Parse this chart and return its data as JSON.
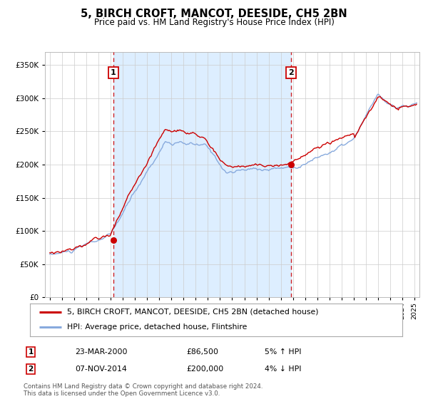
{
  "title": "5, BIRCH CROFT, MANCOT, DEESIDE, CH5 2BN",
  "subtitle": "Price paid vs. HM Land Registry's House Price Index (HPI)",
  "legend_line1": "5, BIRCH CROFT, MANCOT, DEESIDE, CH5 2BN (detached house)",
  "legend_line2": "HPI: Average price, detached house, Flintshire",
  "transaction1_date": "23-MAR-2000",
  "transaction1_price": "£86,500",
  "transaction1_hpi": "5% ↑ HPI",
  "transaction2_date": "07-NOV-2014",
  "transaction2_price": "£200,000",
  "transaction2_hpi": "4% ↓ HPI",
  "footer1": "Contains HM Land Registry data © Crown copyright and database right 2024.",
  "footer2": "This data is licensed under the Open Government Licence v3.0.",
  "sale1_year": 2000.22,
  "sale1_price": 86500,
  "sale2_year": 2014.85,
  "sale2_price": 200000,
  "red_line_color": "#cc0000",
  "blue_line_color": "#88aadd",
  "shade_color": "#ddeeff",
  "grid_color": "#cccccc",
  "background_color": "#ffffff",
  "ylim_max": 370000,
  "yticks": [
    0,
    50000,
    100000,
    150000,
    200000,
    250000,
    300000,
    350000
  ],
  "ytick_labels": [
    "£0",
    "£50K",
    "£100K",
    "£150K",
    "£200K",
    "£250K",
    "£300K",
    "£350K"
  ],
  "xmin": 1994.6,
  "xmax": 2025.4
}
